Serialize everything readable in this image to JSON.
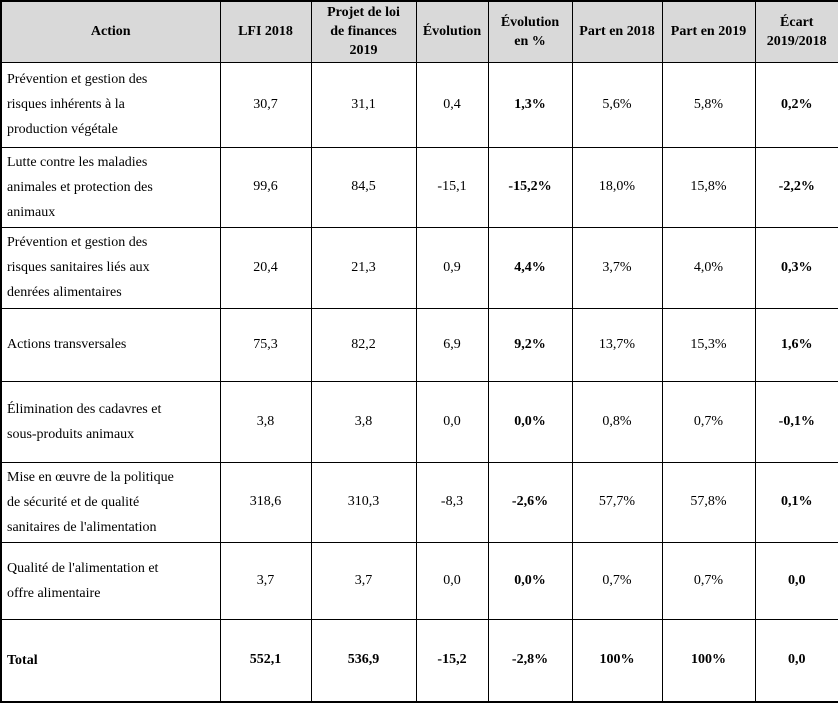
{
  "colors": {
    "header_bg": "#d9d9d9",
    "border": "#000000",
    "text": "#000000"
  },
  "table": {
    "header": {
      "action": "Action",
      "columns": [
        "LFI 2018",
        "Projet de loi\nde finances\n2019",
        "Évolution",
        "Évolution\nen %",
        "Part en 2018",
        "Part en 2019",
        "Écart\n2019/2018"
      ]
    },
    "rows": [
      {
        "action": "Prévention et gestion des\nrisques inhérents à la\nproduction végétale",
        "lfi2018": "30,7",
        "plf2019": "31,1",
        "evolution": "0,4",
        "evolutionPct": "1,3%",
        "part2018": "5,6%",
        "part2019": "5,8%",
        "ecart": "0,2%"
      },
      {
        "action": "Lutte contre les maladies\nanimales et protection des\nanimaux",
        "lfi2018": "99,6",
        "plf2019": "84,5",
        "evolution": "-15,1",
        "evolutionPct": "-15,2%",
        "part2018": "18,0%",
        "part2019": "15,8%",
        "ecart": "-2,2%"
      },
      {
        "action": "Prévention et gestion des\nrisques sanitaires liés aux\ndenrées alimentaires",
        "lfi2018": "20,4",
        "plf2019": "21,3",
        "evolution": "0,9",
        "evolutionPct": "4,4%",
        "part2018": "3,7%",
        "part2019": "4,0%",
        "ecart": "0,3%"
      },
      {
        "action": "Actions transversales",
        "lfi2018": "75,3",
        "plf2019": "82,2",
        "evolution": "6,9",
        "evolutionPct": "9,2%",
        "part2018": "13,7%",
        "part2019": "15,3%",
        "ecart": "1,6%"
      },
      {
        "action": "Élimination des cadavres et\nsous-produits animaux",
        "lfi2018": "3,8",
        "plf2019": "3,8",
        "evolution": "0,0",
        "evolutionPct": "0,0%",
        "part2018": "0,8%",
        "part2019": "0,7%",
        "ecart": "-0,1%"
      },
      {
        "action": "Mise en œuvre de la politique\nde sécurité et de qualité\nsanitaires de l'alimentation",
        "lfi2018": "318,6",
        "plf2019": "310,3",
        "evolution": "-8,3",
        "evolutionPct": "-2,6%",
        "part2018": "57,7%",
        "part2019": "57,8%",
        "ecart": "0,1%"
      },
      {
        "action": "Qualité de l'alimentation et\noffre alimentaire",
        "lfi2018": "3,7",
        "plf2019": "3,7",
        "evolution": "0,0",
        "evolutionPct": "0,0%",
        "part2018": "0,7%",
        "part2019": "0,7%",
        "ecart": "0,0"
      }
    ],
    "total_row": {
      "action": "Total",
      "lfi2018": "552,1",
      "plf2019": "536,9",
      "evolution": "-15,2",
      "evolutionPct": "-2,8%",
      "part2018": "100%",
      "part2019": "100%",
      "ecart": "0,0"
    }
  }
}
